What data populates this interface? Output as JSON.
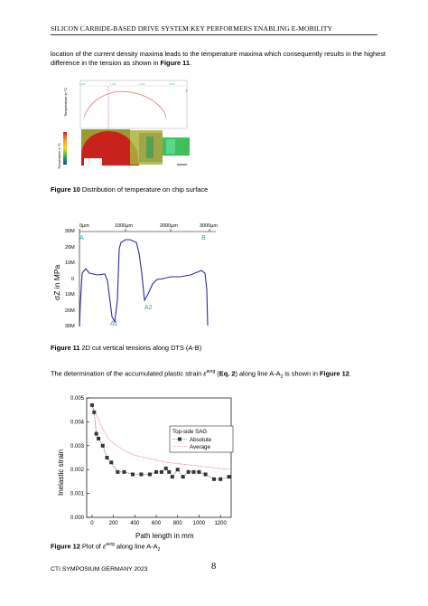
{
  "header": "SILICON CARBIDE-BASED DRIVE SYSTEM:KEY PERFORMERS ENABLING E-MOBILITY",
  "para1": {
    "line1": "location of the current density maxima leads to the temperature maxima which consequently results in the highest",
    "line2_pre": "difference in the tension as shown in ",
    "line2_ref": "Figure 11",
    "line2_post": "."
  },
  "fig10": {
    "caption_label": "Figure 10",
    "caption_text": " Distribution of temperature on chip surface",
    "top_ylabel": "Temperature in °C",
    "bottom_ylabel": "Temperature in °C"
  },
  "fig11": {
    "caption_label": "Figure 11",
    "caption_text": " 2D cut vertical tensions along DTS (A-B)",
    "x_ticks": [
      "0µm",
      "1000µm",
      "2000µm",
      "3000µm"
    ],
    "y_ticks": [
      "30M",
      "20M",
      "10M",
      "0",
      "10M",
      "20M",
      "30M"
    ],
    "ylabel": "σZ in MPa",
    "point_labels": [
      "A",
      "B",
      "A1",
      "A2"
    ]
  },
  "para2": {
    "pre": "The determination of the accumulated plastic strain ",
    "symbol": "ε",
    "sup": "avrg",
    "mid": " (",
    "eq": "Eq. 2",
    "post": ") along line A-A",
    "sub": "2",
    "post2": " is shown in ",
    "ref": "Figure 12",
    "end": "."
  },
  "fig12": {
    "caption_label": "Figure 12",
    "caption_pre": " Plot of ",
    "caption_symbol": "ε",
    "caption_sup": "avrg",
    "caption_post": " along line A-A",
    "caption_sub": "2"
  },
  "chart_data": {
    "type": "line",
    "title": "",
    "xlabel": "Path length in mm",
    "ylabel": "Inelastic strain",
    "xlim": [
      -50,
      1300
    ],
    "ylim": [
      0,
      0.005
    ],
    "x_ticks": [
      "0",
      "200",
      "400",
      "600",
      "800",
      "1000",
      "1200"
    ],
    "y_ticks": [
      "0.000",
      "0.001",
      "0.002",
      "0.003",
      "0.004",
      "0.005"
    ],
    "grid": false,
    "legend": {
      "title": "Top-side SAG",
      "placement": "top-right"
    },
    "series": [
      {
        "name": "Absolute",
        "color": "#333333",
        "marker": "square",
        "x": [
          0,
          20,
          40,
          60,
          100,
          140,
          180,
          240,
          300,
          380,
          460,
          540,
          600,
          650,
          690,
          720,
          750,
          800,
          850,
          900,
          950,
          1000,
          1060,
          1140,
          1200,
          1280
        ],
        "y": [
          0.0047,
          0.0044,
          0.0035,
          0.0033,
          0.003,
          0.0025,
          0.0023,
          0.0019,
          0.0019,
          0.0018,
          0.0018,
          0.0018,
          0.0019,
          0.0019,
          0.00205,
          0.0019,
          0.0017,
          0.002,
          0.0017,
          0.0019,
          0.0019,
          0.0019,
          0.0018,
          0.0016,
          0.0016,
          0.0017
        ]
      },
      {
        "name": "Average",
        "color": "#e05050",
        "marker": "none",
        "x": [
          0,
          50,
          100,
          150,
          200,
          300,
          400,
          500,
          600,
          700,
          800,
          900,
          1000,
          1100,
          1200,
          1300
        ],
        "y": [
          0.0047,
          0.0042,
          0.0037,
          0.0033,
          0.0031,
          0.0028,
          0.0026,
          0.0025,
          0.0024,
          0.0023,
          0.00225,
          0.0022,
          0.00215,
          0.0021,
          0.00205,
          0.002
        ]
      }
    ]
  },
  "footer": {
    "left": "CTI SYMPOSIUM GERMANY 2023",
    "page": "8"
  }
}
